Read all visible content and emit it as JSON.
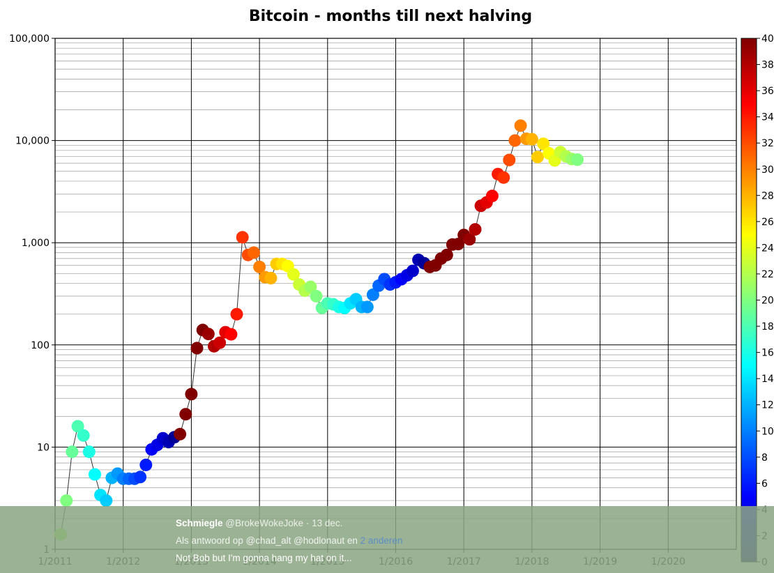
{
  "chart_data": {
    "type": "scatter",
    "title": "Bitcoin - months till next halving",
    "xlabel": "",
    "ylabel": "",
    "y_scale": "log",
    "ylim": [
      1,
      100000
    ],
    "y_ticks": [
      1,
      10,
      100,
      1000,
      10000,
      100000
    ],
    "y_tick_labels": [
      "1",
      "10",
      "100",
      "1,000",
      "10,000",
      "100,000"
    ],
    "xlim": [
      2011.0,
      2021.0
    ],
    "x_ticks": [
      2011,
      2012,
      2013,
      2014,
      2015,
      2016,
      2017,
      2018,
      2019,
      2020
    ],
    "x_tick_labels": [
      "1/2011",
      "1/2012",
      "1/2013",
      "1/2014",
      "1/2015",
      "1/2016",
      "1/2017",
      "1/2018",
      "1/2019",
      "1/2020"
    ],
    "grid": true,
    "line_connecting_points": true,
    "colorbar": {
      "min": 0,
      "max": 40,
      "ticks": [
        0,
        2,
        4,
        6,
        8,
        10,
        12,
        14,
        16,
        18,
        20,
        22,
        24,
        26,
        28,
        30,
        32,
        34,
        36,
        38,
        40
      ],
      "colormap": "jet"
    },
    "points": [
      {
        "date": "2011-02",
        "price": 1.4
      },
      {
        "date": "2011-03",
        "price": 3.0
      },
      {
        "date": "2011-04",
        "price": 9.0
      },
      {
        "date": "2011-05",
        "price": 16.0
      },
      {
        "date": "2011-06",
        "price": 13.0
      },
      {
        "date": "2011-07",
        "price": 9.0
      },
      {
        "date": "2011-08",
        "price": 5.4
      },
      {
        "date": "2011-09",
        "price": 3.4
      },
      {
        "date": "2011-10",
        "price": 3.0
      },
      {
        "date": "2011-11",
        "price": 5.0
      },
      {
        "date": "2011-12",
        "price": 5.5
      },
      {
        "date": "2012-01",
        "price": 4.9
      },
      {
        "date": "2012-02",
        "price": 4.9
      },
      {
        "date": "2012-03",
        "price": 4.9
      },
      {
        "date": "2012-04",
        "price": 5.1
      },
      {
        "date": "2012-05",
        "price": 6.7
      },
      {
        "date": "2012-06",
        "price": 9.5
      },
      {
        "date": "2012-07",
        "price": 10.5
      },
      {
        "date": "2012-08",
        "price": 12.2
      },
      {
        "date": "2012-09",
        "price": 11.2
      },
      {
        "date": "2012-10",
        "price": 12.5
      },
      {
        "date": "2012-11",
        "price": 13.4
      },
      {
        "date": "2012-12",
        "price": 21.0
      },
      {
        "date": "2013-01",
        "price": 33.0
      },
      {
        "date": "2013-02",
        "price": 93.0
      },
      {
        "date": "2013-03",
        "price": 140.0
      },
      {
        "date": "2013-04",
        "price": 128.0
      },
      {
        "date": "2013-05",
        "price": 97.0
      },
      {
        "date": "2013-06",
        "price": 105.0
      },
      {
        "date": "2013-07",
        "price": 133.0
      },
      {
        "date": "2013-08",
        "price": 127.0
      },
      {
        "date": "2013-09",
        "price": 200.0
      },
      {
        "date": "2013-10",
        "price": 1130.0
      },
      {
        "date": "2013-11",
        "price": 760.0
      },
      {
        "date": "2013-12",
        "price": 800.0
      },
      {
        "date": "2014-01",
        "price": 580.0
      },
      {
        "date": "2014-02",
        "price": 460.0
      },
      {
        "date": "2014-03",
        "price": 450.0
      },
      {
        "date": "2014-04",
        "price": 620.0
      },
      {
        "date": "2014-05",
        "price": 620.0
      },
      {
        "date": "2014-06",
        "price": 590.0
      },
      {
        "date": "2014-07",
        "price": 490.0
      },
      {
        "date": "2014-08",
        "price": 390.0
      },
      {
        "date": "2014-09",
        "price": 340.0
      },
      {
        "date": "2014-10",
        "price": 370.0
      },
      {
        "date": "2014-11",
        "price": 300.0
      },
      {
        "date": "2014-12",
        "price": 230.0
      },
      {
        "date": "2015-01",
        "price": 255.0
      },
      {
        "date": "2015-02",
        "price": 250.0
      },
      {
        "date": "2015-03",
        "price": 235.0
      },
      {
        "date": "2015-04",
        "price": 230.0
      },
      {
        "date": "2015-05",
        "price": 255.0
      },
      {
        "date": "2015-06",
        "price": 280.0
      },
      {
        "date": "2015-07",
        "price": 235.0
      },
      {
        "date": "2015-08",
        "price": 235.0
      },
      {
        "date": "2015-09",
        "price": 310.0
      },
      {
        "date": "2015-10",
        "price": 380.0
      },
      {
        "date": "2015-11",
        "price": 440.0
      },
      {
        "date": "2015-12",
        "price": 390.0
      },
      {
        "date": "2016-01",
        "price": 410.0
      },
      {
        "date": "2016-02",
        "price": 440.0
      },
      {
        "date": "2016-03",
        "price": 480.0
      },
      {
        "date": "2016-04",
        "price": 530.0
      },
      {
        "date": "2016-05",
        "price": 680.0
      },
      {
        "date": "2016-06",
        "price": 630.0
      },
      {
        "date": "2016-07",
        "price": 580.0
      },
      {
        "date": "2016-08",
        "price": 600.0
      },
      {
        "date": "2016-09",
        "price": 700.0
      },
      {
        "date": "2016-10",
        "price": 760.0
      },
      {
        "date": "2016-11",
        "price": 960.0
      },
      {
        "date": "2016-12",
        "price": 970.0
      },
      {
        "date": "2017-01",
        "price": 1190.0
      },
      {
        "date": "2017-02",
        "price": 1080.0
      },
      {
        "date": "2017-03",
        "price": 1350.0
      },
      {
        "date": "2017-04",
        "price": 2300.0
      },
      {
        "date": "2017-05",
        "price": 2480.0
      },
      {
        "date": "2017-06",
        "price": 2870.0
      },
      {
        "date": "2017-07",
        "price": 4700.0
      },
      {
        "date": "2017-08",
        "price": 4340.0
      },
      {
        "date": "2017-09",
        "price": 6450.0
      },
      {
        "date": "2017-10",
        "price": 10000.0
      },
      {
        "date": "2017-11",
        "price": 14000.0
      },
      {
        "date": "2017-12",
        "price": 10400.0
      },
      {
        "date": "2018-01",
        "price": 10300.0
      },
      {
        "date": "2018-02",
        "price": 6900.0
      },
      {
        "date": "2018-03",
        "price": 9300.0
      },
      {
        "date": "2018-04",
        "price": 7500.0
      },
      {
        "date": "2018-05",
        "price": 6400.0
      },
      {
        "date": "2018-06",
        "price": 7700.0
      },
      {
        "date": "2018-07",
        "price": 7000.0
      },
      {
        "date": "2018-08",
        "price": 6600.0
      },
      {
        "date": "2018-09",
        "price": 6500.0
      }
    ]
  },
  "tweet": {
    "name": "Schmiegle",
    "handle": "@BrokeWokeJoke",
    "date": "· 13 dec.",
    "reply_prefix": "Als antwoord op",
    "reply_users": "@chad_alt @hodlonaut en",
    "reply_others": "2 anderen",
    "text": "Not Bob but I'm gonna hang my hat on it..."
  }
}
